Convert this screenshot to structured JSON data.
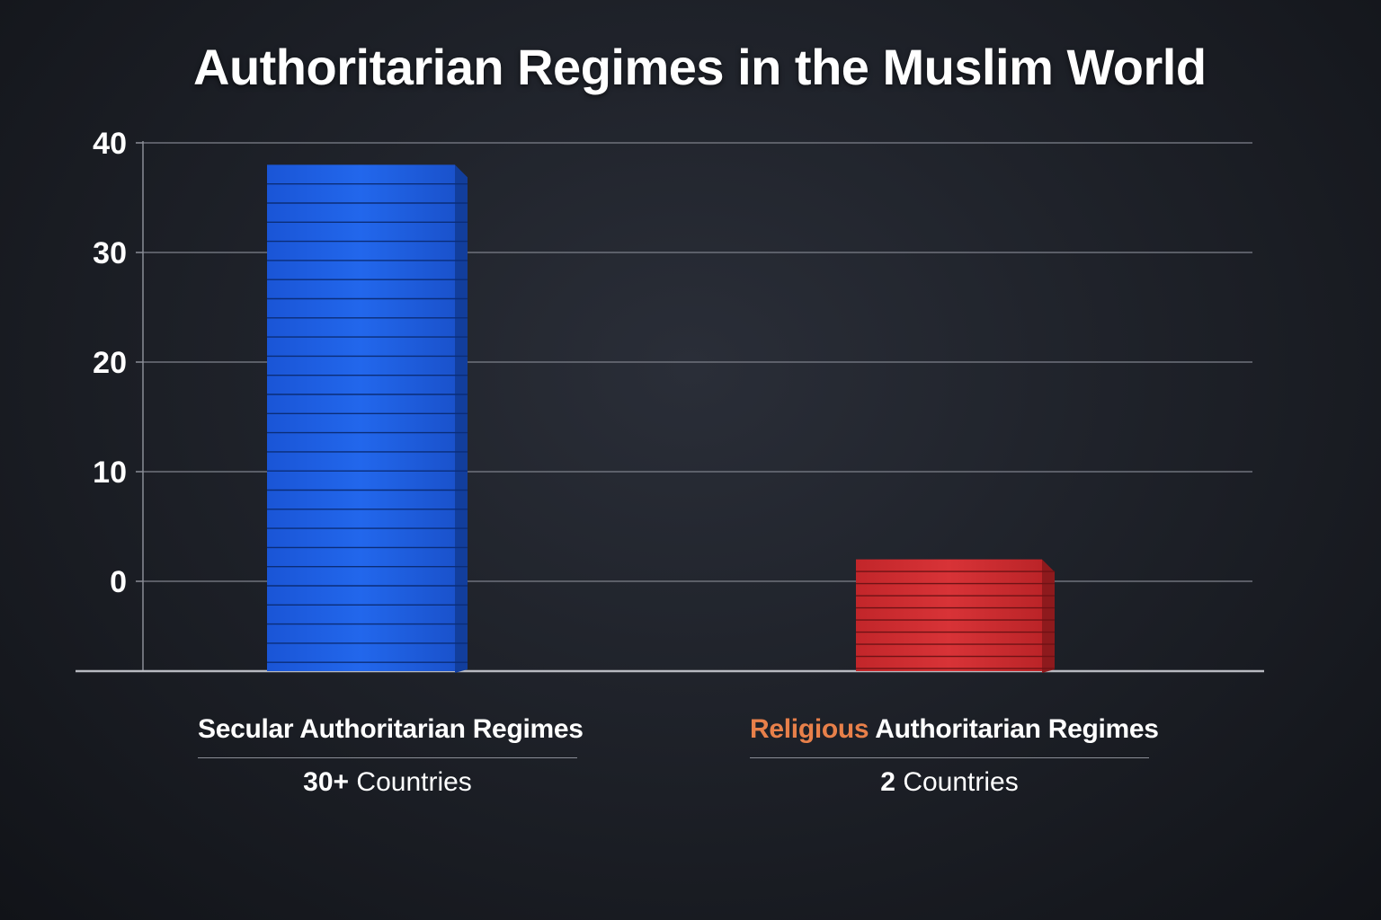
{
  "title": "Authoritarian Regimes in the Muslim World",
  "chart_data": {
    "type": "bar",
    "title": "Authoritarian Regimes in the Muslim World",
    "xlabel": "",
    "ylabel": "",
    "ylim": [
      -8,
      40
    ],
    "yticks": [
      0,
      10,
      20,
      30,
      40
    ],
    "grid": true,
    "categories": [
      "Secular Authoritarian Regimes",
      "Religious Authoritarian Regimes"
    ],
    "values": [
      38,
      2
    ],
    "colors": [
      "#1d5fe0",
      "#d12c2f"
    ],
    "labels": [
      {
        "highlight": "",
        "rest": "Secular Authoritarian Regimes",
        "count_num": "30+",
        "count_text": "Countries"
      },
      {
        "highlight": "Religious",
        "rest": "Authoritarian Regimes",
        "count_num": "2",
        "count_text": "Countries"
      }
    ],
    "highlight_color": "#e8804a"
  }
}
